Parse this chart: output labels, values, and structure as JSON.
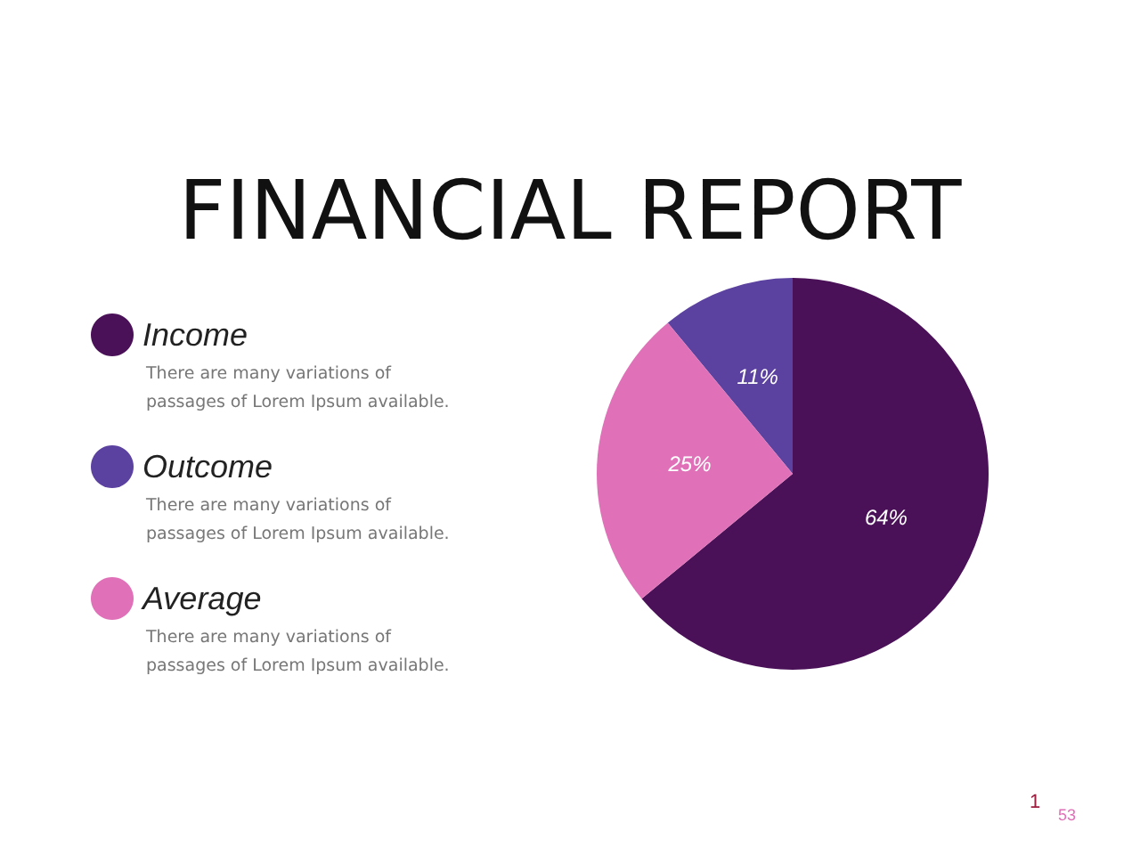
{
  "chart_data": {
    "type": "pie",
    "title": "FINANCIAL REPORT",
    "categories": [
      "Income",
      "Outcome",
      "Average"
    ],
    "values": [
      64,
      11,
      25
    ],
    "colors": [
      "#4a1158",
      "#5b41a0",
      "#e070b8"
    ],
    "value_labels": [
      "64%",
      "11%",
      "25%"
    ],
    "legend": "left",
    "annotations": [
      "There are many variations of\npassages of Lorem Ipsum available.",
      "There are many variations of\npassages of Lorem Ipsum available.",
      "There are many variations of\npassages of Lorem Ipsum available.",
      "1",
      "53"
    ]
  }
}
